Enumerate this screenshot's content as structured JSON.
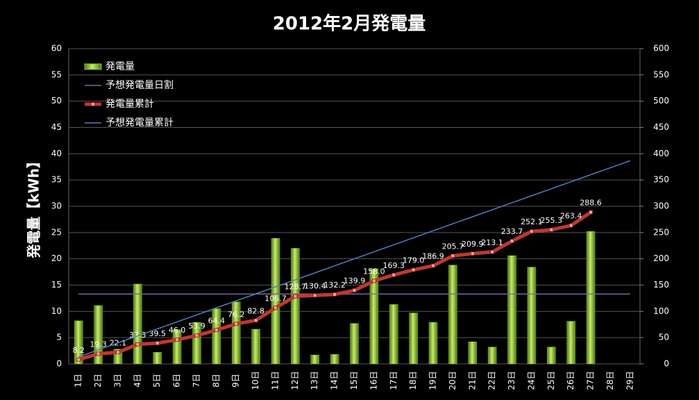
{
  "chart_data": {
    "type": "bar",
    "title": "2012年2月発電量",
    "y_label": "発電量【kWh】",
    "categories": [
      "1日",
      "2日",
      "3日",
      "4日",
      "5日",
      "6日",
      "7日",
      "8日",
      "9日",
      "10日",
      "11日",
      "12日",
      "13日",
      "14日",
      "15日",
      "16日",
      "17日",
      "18日",
      "19日",
      "20日",
      "21日",
      "22日",
      "23日",
      "24日",
      "25日",
      "26日",
      "27日",
      "28日",
      "29日"
    ],
    "ylim": [
      0,
      60
    ],
    "yticks": [
      0,
      5,
      10,
      15,
      20,
      25,
      30,
      35,
      40,
      45,
      50,
      55,
      60
    ],
    "y2lim": [
      0,
      600
    ],
    "y2ticks": [
      0,
      50,
      100,
      150,
      200,
      250,
      300,
      350,
      400,
      450,
      500,
      550,
      600
    ],
    "grid": true,
    "legend": "upper left",
    "series": [
      {
        "name": "発電量",
        "type": "bar",
        "color": "#8fc31f",
        "values": [
          8.2,
          11.1,
          2.8,
          15.2,
          2.2,
          6.5,
          7.9,
          10.5,
          11.8,
          6.6,
          23.9,
          22.0,
          1.7,
          1.8,
          7.7,
          18.1,
          11.3,
          9.7,
          7.9,
          18.8,
          4.2,
          3.2,
          20.6,
          18.4,
          3.2,
          8.1,
          25.2,
          null,
          null
        ]
      },
      {
        "name": "予想発電量日割",
        "type": "line",
        "color": "#8064a2",
        "values": [
          13.3,
          13.3,
          13.3,
          13.3,
          13.3,
          13.3,
          13.3,
          13.3,
          13.3,
          13.3,
          13.3,
          13.3,
          13.3,
          13.3,
          13.3,
          13.3,
          13.3,
          13.3,
          13.3,
          13.3,
          13.3,
          13.3,
          13.3,
          13.3,
          13.3,
          13.3,
          13.3,
          13.3,
          13.3
        ]
      },
      {
        "name": "発電量累計",
        "type": "line",
        "axis": "y2",
        "color": "#c0392b",
        "markers": true,
        "values": [
          8.2,
          19.3,
          22.1,
          37.3,
          39.5,
          46.0,
          53.9,
          64.4,
          76.2,
          82.8,
          106.7,
          128.7,
          130.4,
          132.2,
          139.9,
          158.0,
          169.3,
          179.0,
          186.9,
          205.7,
          209.9,
          213.1,
          233.7,
          252.1,
          255.3,
          263.4,
          288.6,
          null,
          null
        ],
        "value_labels": [
          "8.2",
          "19.3",
          "22.1",
          "37.3",
          "39.5",
          "46.0",
          "53.9",
          "64.4",
          "76.2",
          "82.8",
          "106.7",
          "128.7",
          "130.4",
          "132.2",
          "139.9",
          "158.0",
          "169.3",
          "179.0",
          "186.9",
          "205.7",
          "209.9",
          "213.1",
          "233.7",
          "252.1",
          "255.3",
          "263.4",
          "288.6",
          null,
          null
        ]
      },
      {
        "name": "予想発電量累計",
        "type": "line",
        "axis": "y2",
        "color": "#4f81bd",
        "values": [
          13.3,
          26.7,
          40.0,
          53.3,
          66.7,
          80.0,
          93.3,
          106.7,
          120.0,
          133.3,
          146.7,
          160.0,
          173.3,
          186.7,
          200.0,
          213.3,
          226.7,
          240.0,
          253.3,
          266.7,
          280.0,
          293.3,
          306.7,
          320.0,
          333.3,
          346.7,
          360.0,
          373.3,
          386.7
        ]
      }
    ]
  }
}
